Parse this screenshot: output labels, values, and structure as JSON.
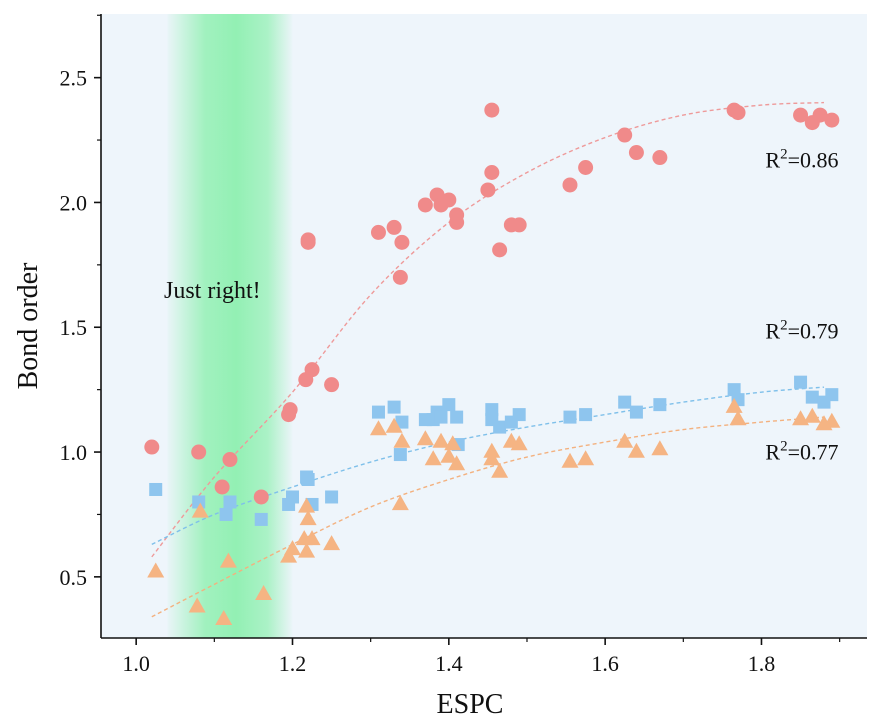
{
  "chart_data": {
    "type": "scatter",
    "xlabel": "ESPC",
    "ylabel": "Bond order",
    "xlim": [
      0.955,
      1.935
    ],
    "ylim": [
      0.255,
      2.755
    ],
    "xticks": [
      1.0,
      1.2,
      1.4,
      1.6,
      1.8
    ],
    "yticks": [
      0.5,
      1.0,
      1.5,
      2.0,
      2.5
    ],
    "xtick_labels": [
      "1.0",
      "1.2",
      "1.4",
      "1.6",
      "1.8"
    ],
    "ytick_labels": [
      "0.5",
      "1.0",
      "1.5",
      "2.0",
      "2.5"
    ],
    "grid": false,
    "background_color": "#eef5fb",
    "highlight_band": {
      "x_range": [
        1.04,
        1.2
      ],
      "color": "#8ef0b0",
      "label": "Just right!"
    },
    "series": [
      {
        "marker": "circle",
        "color": "#f08a8a",
        "fit_color": "#ee9a9a",
        "fit": [
          [
            1.02,
            0.58
          ],
          [
            1.1,
            0.9
          ],
          [
            1.2,
            1.24
          ],
          [
            1.3,
            1.63
          ],
          [
            1.4,
            1.92
          ],
          [
            1.5,
            2.12
          ],
          [
            1.6,
            2.26
          ],
          [
            1.7,
            2.35
          ],
          [
            1.8,
            2.39
          ],
          [
            1.88,
            2.4
          ]
        ],
        "r2_label": {
          "base": "R",
          "sup": "2",
          "rest": "=0.86"
        },
        "points": [
          [
            1.02,
            1.02
          ],
          [
            1.08,
            1.0
          ],
          [
            1.12,
            0.97
          ],
          [
            1.11,
            0.86
          ],
          [
            1.16,
            0.82
          ],
          [
            1.195,
            1.15
          ],
          [
            1.197,
            1.17
          ],
          [
            1.217,
            1.29
          ],
          [
            1.225,
            1.33
          ],
          [
            1.25,
            1.27
          ],
          [
            1.22,
            1.84
          ],
          [
            1.22,
            1.85
          ],
          [
            1.31,
            1.88
          ],
          [
            1.33,
            1.9
          ],
          [
            1.34,
            1.84
          ],
          [
            1.338,
            1.7
          ],
          [
            1.37,
            1.99
          ],
          [
            1.385,
            2.03
          ],
          [
            1.39,
            1.99
          ],
          [
            1.4,
            2.01
          ],
          [
            1.41,
            1.92
          ],
          [
            1.41,
            1.95
          ],
          [
            1.45,
            2.05
          ],
          [
            1.455,
            2.12
          ],
          [
            1.455,
            2.37
          ],
          [
            1.465,
            1.81
          ],
          [
            1.48,
            1.91
          ],
          [
            1.49,
            1.91
          ],
          [
            1.555,
            2.07
          ],
          [
            1.575,
            2.14
          ],
          [
            1.625,
            2.27
          ],
          [
            1.64,
            2.2
          ],
          [
            1.67,
            2.18
          ],
          [
            1.765,
            2.37
          ],
          [
            1.77,
            2.36
          ],
          [
            1.85,
            2.35
          ],
          [
            1.865,
            2.32
          ],
          [
            1.875,
            2.35
          ],
          [
            1.89,
            2.33
          ]
        ]
      },
      {
        "marker": "square",
        "color": "#8ec5ee",
        "fit_color": "#7fc0ea",
        "fit": [
          [
            1.02,
            0.63
          ],
          [
            1.1,
            0.75
          ],
          [
            1.2,
            0.86
          ],
          [
            1.3,
            0.96
          ],
          [
            1.4,
            1.04
          ],
          [
            1.5,
            1.1
          ],
          [
            1.6,
            1.15
          ],
          [
            1.7,
            1.2
          ],
          [
            1.8,
            1.24
          ],
          [
            1.88,
            1.26
          ]
        ],
        "r2_label": {
          "base": "R",
          "sup": "2",
          "rest": "=0.79"
        },
        "points": [
          [
            1.025,
            0.85
          ],
          [
            1.08,
            0.8
          ],
          [
            1.115,
            0.75
          ],
          [
            1.12,
            0.8
          ],
          [
            1.16,
            0.73
          ],
          [
            1.195,
            0.79
          ],
          [
            1.2,
            0.82
          ],
          [
            1.218,
            0.9
          ],
          [
            1.22,
            0.89
          ],
          [
            1.225,
            0.79
          ],
          [
            1.25,
            0.82
          ],
          [
            1.31,
            1.16
          ],
          [
            1.33,
            1.18
          ],
          [
            1.34,
            1.12
          ],
          [
            1.338,
            0.99
          ],
          [
            1.37,
            1.13
          ],
          [
            1.38,
            1.13
          ],
          [
            1.385,
            1.16
          ],
          [
            1.39,
            1.14
          ],
          [
            1.4,
            1.19
          ],
          [
            1.41,
            1.14
          ],
          [
            1.412,
            1.03
          ],
          [
            1.455,
            1.17
          ],
          [
            1.455,
            1.13
          ],
          [
            1.465,
            1.1
          ],
          [
            1.48,
            1.12
          ],
          [
            1.49,
            1.15
          ],
          [
            1.555,
            1.14
          ],
          [
            1.575,
            1.15
          ],
          [
            1.625,
            1.2
          ],
          [
            1.64,
            1.16
          ],
          [
            1.67,
            1.19
          ],
          [
            1.765,
            1.25
          ],
          [
            1.77,
            1.21
          ],
          [
            1.85,
            1.28
          ],
          [
            1.865,
            1.22
          ],
          [
            1.88,
            1.2
          ],
          [
            1.89,
            1.23
          ]
        ]
      },
      {
        "marker": "triangle",
        "color": "#f5b483",
        "fit_color": "#f3b17f",
        "fit": [
          [
            1.02,
            0.34
          ],
          [
            1.1,
            0.47
          ],
          [
            1.2,
            0.63
          ],
          [
            1.3,
            0.78
          ],
          [
            1.4,
            0.89
          ],
          [
            1.5,
            0.98
          ],
          [
            1.6,
            1.04
          ],
          [
            1.7,
            1.09
          ],
          [
            1.8,
            1.12
          ],
          [
            1.88,
            1.14
          ]
        ],
        "r2_label": {
          "base": "R",
          "sup": "2",
          "rest": "=0.77"
        },
        "points": [
          [
            1.025,
            0.52
          ],
          [
            1.078,
            0.38
          ],
          [
            1.082,
            0.76
          ],
          [
            1.112,
            0.33
          ],
          [
            1.118,
            0.56
          ],
          [
            1.163,
            0.43
          ],
          [
            1.195,
            0.58
          ],
          [
            1.2,
            0.61
          ],
          [
            1.215,
            0.65
          ],
          [
            1.218,
            0.78
          ],
          [
            1.218,
            0.6
          ],
          [
            1.22,
            0.73
          ],
          [
            1.225,
            0.65
          ],
          [
            1.25,
            0.63
          ],
          [
            1.31,
            1.09
          ],
          [
            1.33,
            1.1
          ],
          [
            1.34,
            1.04
          ],
          [
            1.338,
            0.79
          ],
          [
            1.37,
            1.05
          ],
          [
            1.38,
            0.97
          ],
          [
            1.39,
            1.04
          ],
          [
            1.4,
            0.98
          ],
          [
            1.405,
            1.03
          ],
          [
            1.41,
            0.95
          ],
          [
            1.455,
            1.0
          ],
          [
            1.455,
            0.97
          ],
          [
            1.465,
            0.92
          ],
          [
            1.48,
            1.04
          ],
          [
            1.49,
            1.03
          ],
          [
            1.555,
            0.96
          ],
          [
            1.575,
            0.97
          ],
          [
            1.625,
            1.04
          ],
          [
            1.64,
            1.0
          ],
          [
            1.67,
            1.01
          ],
          [
            1.765,
            1.18
          ],
          [
            1.77,
            1.13
          ],
          [
            1.85,
            1.13
          ],
          [
            1.865,
            1.14
          ],
          [
            1.88,
            1.11
          ],
          [
            1.89,
            1.12
          ]
        ]
      }
    ],
    "annotations": [
      {
        "series_index": 0,
        "x": 1.805,
        "y": 2.14
      },
      {
        "series_index": 1,
        "x": 1.805,
        "y": 1.455
      },
      {
        "series_index": 2,
        "x": 1.805,
        "y": 0.97
      }
    ]
  }
}
